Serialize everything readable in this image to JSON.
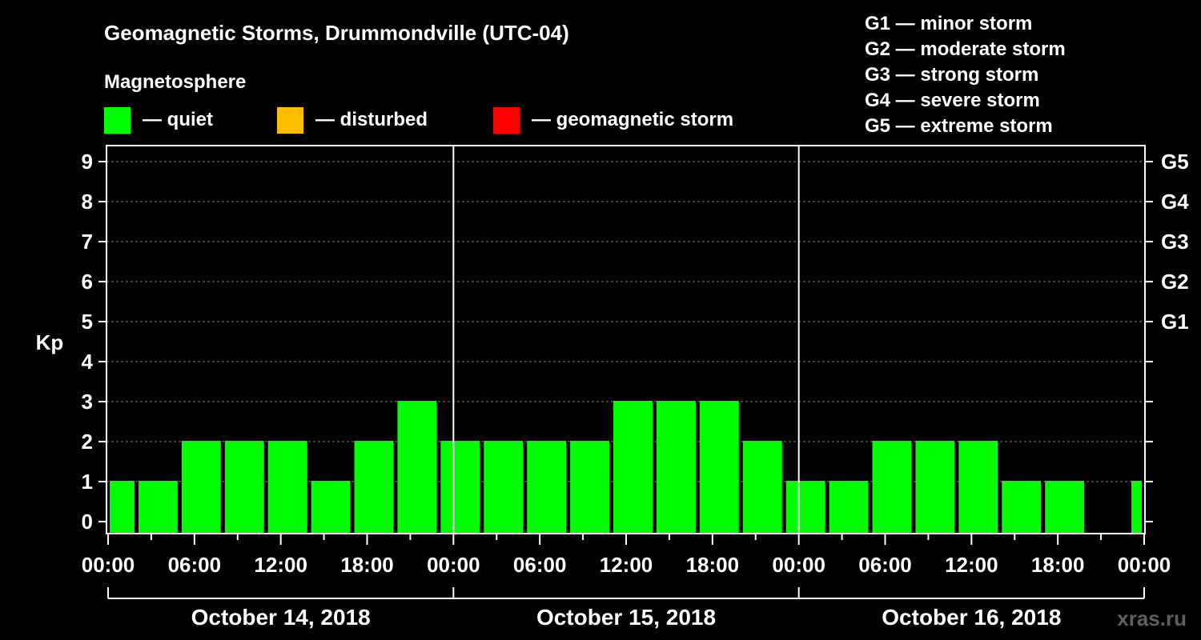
{
  "chart_data": {
    "type": "bar",
    "title": "Geomagnetic Storms, Drummondville (UTC-04)",
    "subtitle": "Magnetosphere",
    "ylabel": "Kp",
    "ylim": [
      0,
      9
    ],
    "yticks": [
      "0",
      "1",
      "2",
      "3",
      "4",
      "5",
      "6",
      "7",
      "8",
      "9"
    ],
    "right_ticks": [
      {
        "kp": 5,
        "label": "G1"
      },
      {
        "kp": 6,
        "label": "G2"
      },
      {
        "kp": 7,
        "label": "G3"
      },
      {
        "kp": 8,
        "label": "G4"
      },
      {
        "kp": 9,
        "label": "G5"
      }
    ],
    "status_legend": [
      {
        "label": "— quiet",
        "color": "#00ff00"
      },
      {
        "label": "— disturbed",
        "color": "#ffbf00"
      },
      {
        "label": "— geomagnetic storm",
        "color": "#ff0000"
      }
    ],
    "storm_scale": [
      "G1 — minor storm",
      "G2 — moderate storm",
      "G3 — strong storm",
      "G4 — severe storm",
      "G5 — extreme storm"
    ],
    "x_tick_labels": [
      "00:00",
      "06:00",
      "12:00",
      "18:00",
      "00:00",
      "06:00",
      "12:00",
      "18:00",
      "00:00",
      "06:00",
      "12:00",
      "18:00",
      "00:00"
    ],
    "days": [
      "October 14, 2018",
      "October 15, 2018",
      "October 16, 2018"
    ],
    "bars": [
      {
        "start_hour": 0,
        "end_hour": 2,
        "kp": 1
      },
      {
        "start_hour": 2,
        "end_hour": 5,
        "kp": 1
      },
      {
        "start_hour": 5,
        "end_hour": 8,
        "kp": 2
      },
      {
        "start_hour": 8,
        "end_hour": 11,
        "kp": 2
      },
      {
        "start_hour": 11,
        "end_hour": 14,
        "kp": 2
      },
      {
        "start_hour": 14,
        "end_hour": 17,
        "kp": 1
      },
      {
        "start_hour": 17,
        "end_hour": 20,
        "kp": 2
      },
      {
        "start_hour": 20,
        "end_hour": 23,
        "kp": 3
      },
      {
        "start_hour": 23,
        "end_hour": 26,
        "kp": 2
      },
      {
        "start_hour": 26,
        "end_hour": 29,
        "kp": 2
      },
      {
        "start_hour": 29,
        "end_hour": 32,
        "kp": 2
      },
      {
        "start_hour": 32,
        "end_hour": 35,
        "kp": 2
      },
      {
        "start_hour": 35,
        "end_hour": 38,
        "kp": 3
      },
      {
        "start_hour": 38,
        "end_hour": 41,
        "kp": 3
      },
      {
        "start_hour": 41,
        "end_hour": 44,
        "kp": 3
      },
      {
        "start_hour": 44,
        "end_hour": 47,
        "kp": 2
      },
      {
        "start_hour": 47,
        "end_hour": 50,
        "kp": 1
      },
      {
        "start_hour": 50,
        "end_hour": 53,
        "kp": 1
      },
      {
        "start_hour": 53,
        "end_hour": 56,
        "kp": 2
      },
      {
        "start_hour": 56,
        "end_hour": 59,
        "kp": 2
      },
      {
        "start_hour": 59,
        "end_hour": 62,
        "kp": 2
      },
      {
        "start_hour": 62,
        "end_hour": 65,
        "kp": 1
      },
      {
        "start_hour": 65,
        "end_hour": 68,
        "kp": 1
      },
      {
        "start_hour": 71,
        "end_hour": 72,
        "kp": 1
      }
    ],
    "x_range_hours": [
      0,
      72
    ]
  },
  "watermark": "xras.ru",
  "colors": {
    "background": "#000000",
    "foreground": "#ffffff",
    "quiet": "#00ff00",
    "disturbed": "#ffbf00",
    "storm": "#ff0000",
    "grid": "#808080"
  }
}
